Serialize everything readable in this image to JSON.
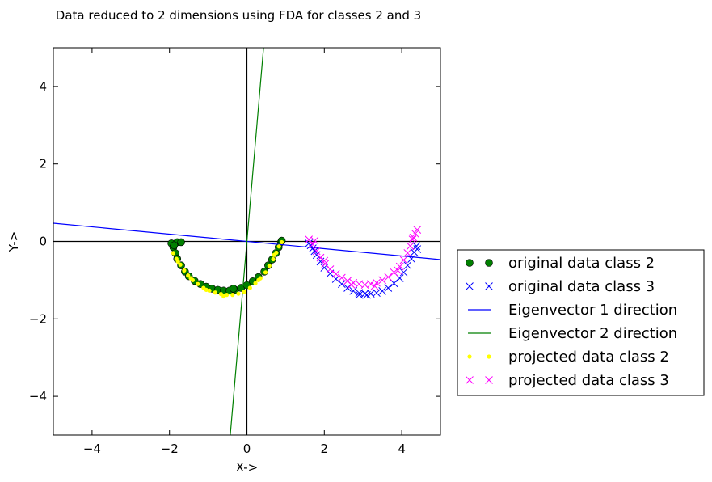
{
  "chart_data": {
    "type": "scatter",
    "title": "Data reduced to 2 dimensions using FDA for classes 2 and 3",
    "xlabel": "X->",
    "ylabel": "Y->",
    "xlim": [
      -5,
      5
    ],
    "ylim": [
      -5,
      5
    ],
    "xticks": [
      -4,
      -2,
      0,
      2,
      4
    ],
    "yticks": [
      -4,
      -2,
      0,
      2,
      4
    ],
    "x_tick_labels": [
      "−4",
      "−2",
      "0",
      "2",
      "4"
    ],
    "y_tick_labels": [
      "−4",
      "−2",
      "0",
      "2",
      "4"
    ],
    "grid": false,
    "legend_position": "outside-right",
    "reference_lines": {
      "horizontal_y": 0,
      "vertical_x": 0,
      "color": "#000000"
    },
    "series": [
      {
        "name": "original data class 2",
        "kind": "points",
        "marker": "circle",
        "color": "#007f00",
        "points": [
          [
            -1.95,
            -0.05
          ],
          [
            -1.9,
            -0.15
          ],
          [
            -1.85,
            -0.3
          ],
          [
            -1.8,
            -0.45
          ],
          [
            -1.7,
            -0.62
          ],
          [
            -1.6,
            -0.78
          ],
          [
            -1.5,
            -0.9
          ],
          [
            -1.35,
            -1.02
          ],
          [
            -1.2,
            -1.1
          ],
          [
            -1.05,
            -1.17
          ],
          [
            -0.9,
            -1.22
          ],
          [
            -0.75,
            -1.25
          ],
          [
            -0.6,
            -1.27
          ],
          [
            -0.45,
            -1.27
          ],
          [
            -0.3,
            -1.25
          ],
          [
            -0.15,
            -1.2
          ],
          [
            0.0,
            -1.13
          ],
          [
            0.15,
            -1.03
          ],
          [
            0.3,
            -0.92
          ],
          [
            0.45,
            -0.78
          ],
          [
            0.55,
            -0.62
          ],
          [
            0.65,
            -0.47
          ],
          [
            0.75,
            -0.3
          ],
          [
            0.82,
            -0.15
          ],
          [
            0.88,
            -0.02
          ],
          [
            -1.8,
            -0.02
          ],
          [
            -1.7,
            -0.02
          ],
          [
            -1.88,
            -0.1
          ],
          [
            0.9,
            0.02
          ],
          [
            -0.35,
            -1.22
          ]
        ]
      },
      {
        "name": "original data class 3",
        "kind": "points",
        "marker": "x",
        "color": "#0000ff",
        "points": [
          [
            1.6,
            -0.05
          ],
          [
            1.7,
            -0.18
          ],
          [
            1.8,
            -0.35
          ],
          [
            1.9,
            -0.52
          ],
          [
            2.0,
            -0.68
          ],
          [
            2.15,
            -0.83
          ],
          [
            2.3,
            -0.97
          ],
          [
            2.45,
            -1.1
          ],
          [
            2.6,
            -1.2
          ],
          [
            2.75,
            -1.28
          ],
          [
            2.9,
            -1.33
          ],
          [
            3.05,
            -1.35
          ],
          [
            3.2,
            -1.35
          ],
          [
            3.35,
            -1.33
          ],
          [
            3.5,
            -1.28
          ],
          [
            3.65,
            -1.2
          ],
          [
            3.8,
            -1.08
          ],
          [
            3.95,
            -0.95
          ],
          [
            4.05,
            -0.8
          ],
          [
            4.15,
            -0.62
          ],
          [
            4.25,
            -0.45
          ],
          [
            4.32,
            -0.28
          ],
          [
            4.38,
            -0.12
          ],
          [
            1.65,
            -0.1
          ],
          [
            1.75,
            -0.25
          ],
          [
            2.9,
            -1.38
          ],
          [
            3.1,
            -1.38
          ],
          [
            4.4,
            -0.2
          ]
        ]
      },
      {
        "name": "Eigenvector 1 direction",
        "kind": "line",
        "color": "#0000ff",
        "points": [
          [
            -5,
            0.47
          ],
          [
            5,
            -0.47
          ]
        ]
      },
      {
        "name": "Eigenvector 2 direction",
        "kind": "line",
        "color": "#007f00",
        "points": [
          [
            -0.43,
            -5
          ],
          [
            0.43,
            5
          ]
        ]
      },
      {
        "name": "projected data class 2",
        "kind": "points",
        "marker": "dot",
        "color": "#ffff00",
        "points": [
          [
            -1.9,
            -0.3
          ],
          [
            -1.82,
            -0.45
          ],
          [
            -1.72,
            -0.6
          ],
          [
            -1.62,
            -0.75
          ],
          [
            -1.52,
            -0.88
          ],
          [
            -1.4,
            -1.0
          ],
          [
            -1.27,
            -1.1
          ],
          [
            -1.12,
            -1.2
          ],
          [
            -0.97,
            -1.27
          ],
          [
            -0.82,
            -1.32
          ],
          [
            -0.67,
            -1.36
          ],
          [
            -0.52,
            -1.38
          ],
          [
            -0.37,
            -1.38
          ],
          [
            -0.22,
            -1.35
          ],
          [
            -0.07,
            -1.3
          ],
          [
            0.08,
            -1.2
          ],
          [
            0.22,
            -1.08
          ],
          [
            0.35,
            -0.95
          ],
          [
            0.48,
            -0.8
          ],
          [
            0.58,
            -0.63
          ],
          [
            0.68,
            -0.46
          ],
          [
            0.76,
            -0.29
          ],
          [
            0.83,
            -0.13
          ],
          [
            0.9,
            -0.02
          ],
          [
            -1.78,
            -0.52
          ],
          [
            -1.45,
            -0.95
          ],
          [
            -1.05,
            -1.25
          ],
          [
            -0.6,
            -1.42
          ],
          [
            0.3,
            -1.0
          ],
          [
            0.7,
            -0.35
          ]
        ]
      },
      {
        "name": "projected data class 3",
        "kind": "points",
        "marker": "x",
        "color": "#ff00ff",
        "points": [
          [
            1.6,
            0.05
          ],
          [
            1.7,
            -0.08
          ],
          [
            1.8,
            -0.25
          ],
          [
            1.9,
            -0.42
          ],
          [
            2.02,
            -0.58
          ],
          [
            2.15,
            -0.72
          ],
          [
            2.3,
            -0.84
          ],
          [
            2.45,
            -0.94
          ],
          [
            2.6,
            -1.02
          ],
          [
            2.75,
            -1.07
          ],
          [
            2.9,
            -1.1
          ],
          [
            3.05,
            -1.12
          ],
          [
            3.2,
            -1.1
          ],
          [
            3.35,
            -1.07
          ],
          [
            3.5,
            -1.0
          ],
          [
            3.65,
            -0.92
          ],
          [
            3.8,
            -0.8
          ],
          [
            3.95,
            -0.65
          ],
          [
            4.05,
            -0.48
          ],
          [
            4.15,
            -0.3
          ],
          [
            4.22,
            -0.12
          ],
          [
            4.28,
            0.05
          ],
          [
            4.35,
            0.2
          ],
          [
            4.4,
            0.3
          ],
          [
            1.75,
            0.02
          ],
          [
            2.0,
            -0.5
          ],
          [
            2.7,
            -1.12
          ],
          [
            3.3,
            -1.15
          ],
          [
            3.9,
            -0.75
          ],
          [
            4.3,
            0.1
          ]
        ]
      }
    ]
  }
}
